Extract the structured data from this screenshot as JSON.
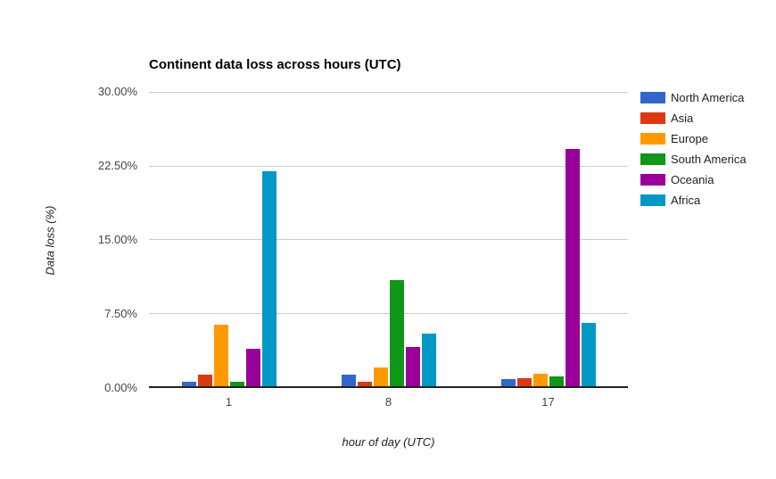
{
  "page": {
    "background_color": "#ffffff",
    "axis_line_color": "#222222",
    "gridline_color": "#cccccc",
    "tick_label_color": "#444444",
    "axis_title_color": "#222222",
    "title_color": "#000000"
  },
  "chart_data": {
    "type": "bar",
    "title": "Continent data loss across hours (UTC)",
    "xlabel": "hour of day (UTC)",
    "ylabel": "Data loss (%)",
    "categories": [
      "1",
      "8",
      "17"
    ],
    "series": [
      {
        "name": "North America",
        "color": "#3366cc",
        "values": [
          0.5,
          1.2,
          0.7
        ]
      },
      {
        "name": "Asia",
        "color": "#dc3912",
        "values": [
          1.2,
          0.5,
          0.8
        ]
      },
      {
        "name": "Europe",
        "color": "#ff9900",
        "values": [
          6.3,
          1.9,
          1.3
        ]
      },
      {
        "name": "South America",
        "color": "#109618",
        "values": [
          0.5,
          10.8,
          1.0
        ]
      },
      {
        "name": "Oceania",
        "color": "#990099",
        "values": [
          3.8,
          4.0,
          24.2
        ]
      },
      {
        "name": "Africa",
        "color": "#0099c6",
        "values": [
          21.9,
          5.4,
          6.5
        ]
      }
    ],
    "ylim": [
      0,
      30
    ],
    "y_ticks": [
      {
        "label": "30.00%",
        "value": 30
      },
      {
        "label": "22.50%",
        "value": 22.5
      },
      {
        "label": "15.00%",
        "value": 15
      },
      {
        "label": "7.50%",
        "value": 7.5
      },
      {
        "label": "0.00%",
        "value": 0
      }
    ],
    "grid": true,
    "legend_position": "right"
  }
}
